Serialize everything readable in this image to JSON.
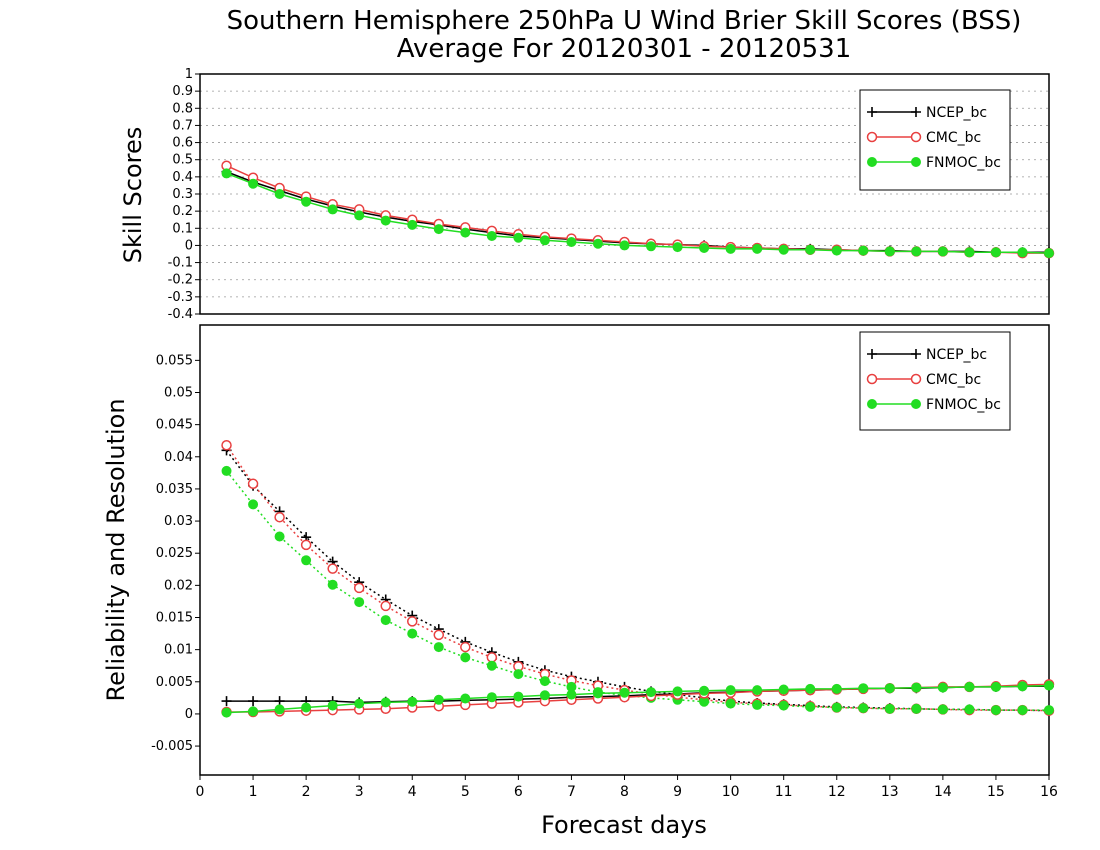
{
  "title_line1": "Southern Hemisphere 250hPa U Wind Brier Skill Scores (BSS)",
  "title_line2": "Average For 20120301 - 20120531",
  "chart_data": [
    {
      "type": "line",
      "ylabel": "Skill Scores",
      "ylim": [
        -0.4,
        1.0
      ],
      "yticks": [
        "1",
        "0.9",
        "0.8",
        "0.7",
        "0.6",
        "0.5",
        "0.4",
        "0.3",
        "0.2",
        "0.1",
        "0",
        "-0.1",
        "-0.2",
        "-0.3",
        "-0.4"
      ],
      "grid": true,
      "legend_position": "top-right",
      "x": [
        0.5,
        1,
        1.5,
        2,
        2.5,
        3,
        3.5,
        4,
        4.5,
        5,
        5.5,
        6,
        6.5,
        7,
        7.5,
        8,
        8.5,
        9,
        9.5,
        10,
        10.5,
        11,
        11.5,
        12,
        12.5,
        13,
        13.5,
        14,
        14.5,
        15,
        15.5,
        16
      ],
      "series": [
        {
          "name": "NCEP_bc",
          "color": "#000000",
          "marker": "plus",
          "style": "solid",
          "values": [
            0.43,
            0.37,
            0.32,
            0.27,
            0.23,
            0.195,
            0.165,
            0.14,
            0.12,
            0.095,
            0.075,
            0.055,
            0.045,
            0.035,
            0.025,
            0.015,
            0.01,
            0.005,
            0.0,
            -0.01,
            -0.015,
            -0.02,
            -0.02,
            -0.025,
            -0.03,
            -0.03,
            -0.035,
            -0.035,
            -0.035,
            -0.04,
            -0.04,
            -0.04
          ]
        },
        {
          "name": "CMC_bc",
          "color": "#e84040",
          "marker": "open-circle",
          "style": "solid",
          "values": [
            0.465,
            0.395,
            0.335,
            0.285,
            0.24,
            0.21,
            0.175,
            0.15,
            0.125,
            0.105,
            0.085,
            0.065,
            0.05,
            0.04,
            0.03,
            0.02,
            0.01,
            0.005,
            -0.005,
            -0.01,
            -0.015,
            -0.02,
            -0.025,
            -0.025,
            -0.03,
            -0.035,
            -0.035,
            -0.035,
            -0.04,
            -0.04,
            -0.045,
            -0.045
          ]
        },
        {
          "name": "FNMOC_bc",
          "color": "#22dd22",
          "marker": "filled-circle",
          "style": "solid",
          "values": [
            0.42,
            0.36,
            0.3,
            0.255,
            0.21,
            0.175,
            0.145,
            0.12,
            0.095,
            0.075,
            0.055,
            0.045,
            0.03,
            0.02,
            0.01,
            0.0,
            -0.005,
            -0.01,
            -0.015,
            -0.02,
            -0.02,
            -0.025,
            -0.025,
            -0.03,
            -0.03,
            -0.035,
            -0.035,
            -0.035,
            -0.04,
            -0.04,
            -0.04,
            -0.045
          ]
        }
      ]
    },
    {
      "type": "line",
      "ylabel": "Reliability and Resolution",
      "xlabel": "Forecast days",
      "ylim": [
        -0.0095,
        0.0605
      ],
      "yticks": [
        "0.055",
        "0.05",
        "0.045",
        "0.04",
        "0.035",
        "0.03",
        "0.025",
        "0.02",
        "0.015",
        "0.01",
        "0.005",
        "0",
        "-0.005"
      ],
      "xlim": [
        0,
        16
      ],
      "xticks": [
        "0",
        "1",
        "2",
        "3",
        "4",
        "5",
        "6",
        "7",
        "8",
        "9",
        "10",
        "11",
        "12",
        "13",
        "14",
        "15",
        "16"
      ],
      "grid": false,
      "legend_position": "top-right",
      "x": [
        0.5,
        1,
        1.5,
        2,
        2.5,
        3,
        3.5,
        4,
        4.5,
        5,
        5.5,
        6,
        6.5,
        7,
        7.5,
        8,
        8.5,
        9,
        9.5,
        10,
        10.5,
        11,
        11.5,
        12,
        12.5,
        13,
        13.5,
        14,
        14.5,
        15,
        15.5,
        16
      ],
      "series": [
        {
          "name": "NCEP_bc",
          "color": "#000000",
          "marker": "plus",
          "style": "dotted",
          "values": [
            0.041,
            0.0355,
            0.0315,
            0.0275,
            0.0237,
            0.0205,
            0.0178,
            0.0153,
            0.0132,
            0.0112,
            0.0096,
            0.0081,
            0.0068,
            0.0058,
            0.005,
            0.0042,
            0.0035,
            0.003,
            0.0025,
            0.002,
            0.0017,
            0.0015,
            0.0013,
            0.0011,
            0.001,
            0.0009,
            0.0008,
            0.0007,
            0.0007,
            0.0006,
            0.0006,
            0.0005
          ]
        },
        {
          "name": "CMC_bc",
          "color": "#e84040",
          "marker": "open-circle",
          "style": "dotted",
          "values": [
            0.0418,
            0.0358,
            0.0306,
            0.0263,
            0.0226,
            0.0196,
            0.0168,
            0.0144,
            0.0123,
            0.0104,
            0.0088,
            0.0074,
            0.0062,
            0.0052,
            0.0044,
            0.0037,
            0.0031,
            0.0026,
            0.0022,
            0.0018,
            0.0016,
            0.0014,
            0.0012,
            0.001,
            0.0009,
            0.0008,
            0.0008,
            0.0007,
            0.0006,
            0.0006,
            0.0006,
            0.0005
          ]
        },
        {
          "name": "FNMOC_bc",
          "color": "#22dd22",
          "marker": "filled-circle",
          "style": "dotted",
          "values": [
            0.0378,
            0.0326,
            0.0276,
            0.0239,
            0.0201,
            0.0174,
            0.0146,
            0.0125,
            0.0104,
            0.0088,
            0.0075,
            0.0062,
            0.0051,
            0.0042,
            0.0034,
            0.0029,
            0.0025,
            0.0022,
            0.0019,
            0.0016,
            0.0014,
            0.0013,
            0.0011,
            0.001,
            0.0009,
            0.0008,
            0.0008,
            0.0007,
            0.0007,
            0.0006,
            0.0006,
            0.0006
          ]
        },
        {
          "name": "NCEP_bc",
          "color": "#000000",
          "marker": "plus",
          "style": "solid",
          "values": [
            0.002,
            0.002,
            0.002,
            0.002,
            0.002,
            0.0018,
            0.0019,
            0.002,
            0.002,
            0.0021,
            0.0022,
            0.0023,
            0.0024,
            0.0026,
            0.0027,
            0.0028,
            0.003,
            0.0031,
            0.0033,
            0.0034,
            0.0035,
            0.0036,
            0.0037,
            0.0038,
            0.0039,
            0.004,
            0.004,
            0.0041,
            0.0042,
            0.0042,
            0.0043,
            0.0043
          ]
        },
        {
          "name": "CMC_bc",
          "color": "#e84040",
          "marker": "open-circle",
          "style": "solid",
          "values": [
            0.0003,
            0.0003,
            0.0004,
            0.0005,
            0.0006,
            0.0007,
            0.0008,
            0.001,
            0.0012,
            0.0014,
            0.0016,
            0.0018,
            0.002,
            0.0022,
            0.0024,
            0.0026,
            0.0028,
            0.003,
            0.0032,
            0.0033,
            0.0035,
            0.0036,
            0.0037,
            0.0038,
            0.0039,
            0.004,
            0.0041,
            0.0042,
            0.0042,
            0.0043,
            0.0045,
            0.0046
          ]
        },
        {
          "name": "FNMOC_bc",
          "color": "#22dd22",
          "marker": "filled-circle",
          "style": "solid",
          "values": [
            0.0002,
            0.0004,
            0.0007,
            0.001,
            0.0013,
            0.0016,
            0.0018,
            0.0019,
            0.0022,
            0.0024,
            0.0026,
            0.0027,
            0.0029,
            0.003,
            0.0032,
            0.0033,
            0.0034,
            0.0035,
            0.0036,
            0.0037,
            0.0037,
            0.0038,
            0.0039,
            0.0039,
            0.004,
            0.004,
            0.0041,
            0.0041,
            0.0042,
            0.0042,
            0.0043,
            0.0044
          ]
        }
      ]
    }
  ]
}
